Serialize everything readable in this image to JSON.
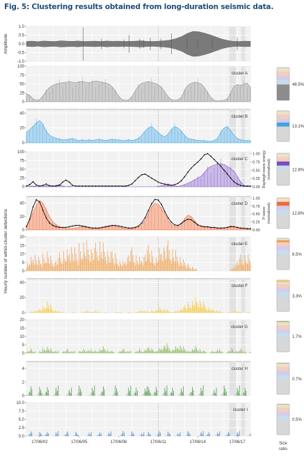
{
  "figure": {
    "title": "Fig. 5: Clustering results obtained from long-duration seismic data."
  },
  "chart_data": {
    "type": "area",
    "title": "Fig. 5: Clustering results obtained from long-duration seismic data.",
    "xlabel": "",
    "x_ticks": [
      "17/06/02",
      "17/06/05",
      "17/06/08",
      "17/06/11",
      "17/06/14",
      "17/06/17"
    ],
    "y_axis_shared_label": "Hourly number of within-cluster detections",
    "amplitude": {
      "ylabel": "Amplitude",
      "ylim": [
        -1.0,
        1.0
      ],
      "yticks": [
        "1.0",
        "0.5",
        "0.0",
        "-0.5",
        "-1.0"
      ],
      "envelope": [
        0.14,
        0.16,
        0.13,
        0.17,
        0.15,
        0.14,
        0.18,
        0.16,
        0.15,
        0.17,
        0.14,
        0.15,
        0.16,
        0.14,
        0.17,
        0.15,
        0.16,
        0.14,
        0.15,
        0.16,
        0.18,
        0.15,
        0.14,
        0.16,
        0.18,
        0.22,
        0.3,
        0.42,
        0.6,
        0.72,
        0.7,
        0.62,
        0.52,
        0.4,
        0.28,
        0.2,
        0.15,
        0.14,
        0.16,
        0.15
      ],
      "spikes": [
        0.43,
        0.57,
        0.74,
        0.78,
        0.86,
        0.89,
        0.94,
        1.02,
        1.1,
        1.22,
        1.3,
        1.41,
        1.6
      ],
      "spike_heights": [
        0.95,
        0.3,
        0.25,
        0.5,
        0.28,
        0.22,
        0.35,
        0.3,
        0.6,
        0.3,
        0.25,
        0.25,
        0.35
      ]
    },
    "clusters": [
      {
        "name": "cluster A",
        "ratio_label": "48.5%",
        "color": "#8c8c8c",
        "fill": "#c8c8c8",
        "ylim": [
          0,
          100
        ],
        "yticks": [
          "100",
          "75",
          "50",
          "25",
          "0"
        ],
        "sample_period_days": 0.35,
        "values": [
          22,
          18,
          8,
          4,
          6,
          16,
          30,
          40,
          46,
          50,
          52,
          54,
          55,
          56,
          55,
          54,
          56,
          57,
          55,
          54,
          56,
          58,
          57,
          55,
          53,
          50,
          42,
          30,
          16,
          6,
          4,
          5,
          14,
          30,
          44,
          52,
          55,
          56,
          55,
          52,
          48,
          40,
          28,
          14,
          6,
          4,
          5,
          12,
          32,
          46,
          52,
          55,
          54,
          50,
          40,
          26,
          12,
          4,
          2,
          3,
          4,
          8,
          25,
          42,
          48,
          46,
          50,
          52,
          40
        ]
      },
      {
        "name": "cluster B",
        "ratio_label": "13.1%",
        "color": "#3fa3de",
        "fill": "#a8d4f0",
        "ylim": [
          0,
          45
        ],
        "yticks": [
          "40",
          "20",
          "0"
        ],
        "sample_period_days": 0.35,
        "values": [
          14,
          18,
          22,
          27,
          30,
          25,
          16,
          10,
          8,
          6,
          5,
          4,
          4,
          5,
          6,
          4,
          3,
          4,
          3,
          4,
          3,
          4,
          5,
          4,
          3,
          4,
          5,
          4,
          4,
          3,
          3,
          4,
          3,
          4,
          6,
          10,
          16,
          20,
          22,
          18,
          14,
          10,
          8,
          12,
          18,
          22,
          20,
          16,
          10,
          6,
          5,
          4,
          3,
          3,
          3,
          2,
          2,
          3,
          6,
          14,
          20,
          22,
          16,
          10,
          6,
          4,
          3,
          3,
          3
        ]
      },
      {
        "name": "cluster C",
        "ratio_label": "12.8%",
        "color": "#7b4cc0",
        "fill": "#c7b4e6",
        "ylim": [
          0,
          100
        ],
        "yticks": [
          "100",
          "75",
          "50",
          "25",
          "0"
        ],
        "sample_period_days": 0.35,
        "values": [
          0,
          1,
          2,
          1,
          0,
          1,
          3,
          2,
          1,
          4,
          6,
          2,
          0,
          1,
          0,
          0,
          0,
          0,
          0,
          0,
          0,
          0,
          0,
          0,
          0,
          0,
          0,
          0,
          0,
          0,
          2,
          0,
          0,
          0,
          0,
          0,
          0,
          0,
          0,
          0,
          1,
          3,
          5,
          8,
          4,
          2,
          1,
          3,
          6,
          10,
          14,
          20,
          25,
          30,
          40,
          52,
          58,
          62,
          65,
          66,
          64,
          58,
          52,
          44,
          30,
          14,
          4,
          1,
          0
        ],
        "second_axis_label": "Rayleigh-wave energy (normalized)",
        "second_axis_ticks": [
          "1.00",
          "0.75",
          "0.50",
          "0.25",
          "0.00"
        ],
        "energy": [
          0.02,
          0.06,
          0.15,
          0.05,
          0.02,
          0.04,
          0.08,
          0.03,
          0.02,
          0.02,
          0.04,
          0.14,
          0.2,
          0.14,
          0.04,
          0.02,
          0.02,
          0.02,
          0.02,
          0.02,
          0.02,
          0.02,
          0.02,
          0.02,
          0.02,
          0.02,
          0.02,
          0.02,
          0.02,
          0.02,
          0.02,
          0.04,
          0.08,
          0.18,
          0.28,
          0.36,
          0.38,
          0.32,
          0.26,
          0.2,
          0.14,
          0.1,
          0.08,
          0.05,
          0.04,
          0.06,
          0.1,
          0.18,
          0.3,
          0.44,
          0.56,
          0.66,
          0.74,
          0.84,
          0.96,
          1.0,
          0.92,
          0.82,
          0.72,
          0.62,
          0.5,
          0.38,
          0.26,
          0.15,
          0.08,
          0.04,
          0.02,
          0.02,
          0.02
        ]
      },
      {
        "name": "cluster D",
        "ratio_label": "12.8%",
        "color": "#ee6a3e",
        "fill": "#f6b9a1",
        "ylim": [
          0,
          50
        ],
        "yticks": [
          "40",
          "20",
          "0"
        ],
        "sample_period_days": 0.35,
        "values": [
          6,
          14,
          26,
          36,
          44,
          40,
          30,
          20,
          12,
          8,
          5,
          3,
          2,
          2,
          2,
          3,
          4,
          5,
          4,
          3,
          2,
          2,
          2,
          3,
          4,
          5,
          6,
          5,
          4,
          3,
          2,
          2,
          2,
          3,
          4,
          8,
          14,
          24,
          34,
          40,
          38,
          32,
          24,
          14,
          8,
          5,
          6,
          10,
          16,
          22,
          20,
          14,
          8,
          5,
          4,
          4,
          3,
          3,
          2,
          2,
          3,
          4,
          6,
          5,
          3,
          2,
          2,
          1,
          1
        ],
        "second_axis_label": "P-wave (normalized)",
        "second_axis_ticks": [
          "1.00",
          "0.75",
          "0.50",
          "0.25",
          "0.00"
        ],
        "energy": [
          0.1,
          0.34,
          0.72,
          0.95,
          0.88,
          0.62,
          0.38,
          0.22,
          0.14,
          0.1,
          0.08,
          0.08,
          0.08,
          0.1,
          0.12,
          0.14,
          0.14,
          0.12,
          0.1,
          0.08,
          0.06,
          0.06,
          0.06,
          0.08,
          0.1,
          0.12,
          0.14,
          0.14,
          0.12,
          0.1,
          0.08,
          0.06,
          0.06,
          0.08,
          0.12,
          0.22,
          0.38,
          0.6,
          0.82,
          0.96,
          0.94,
          0.8,
          0.58,
          0.38,
          0.24,
          0.16,
          0.14,
          0.2,
          0.28,
          0.34,
          0.32,
          0.24,
          0.16,
          0.12,
          0.1,
          0.1,
          0.08,
          0.08,
          0.06,
          0.06,
          0.06,
          0.08,
          0.1,
          0.1,
          0.08,
          0.06,
          0.05,
          0.04,
          0.04
        ]
      },
      {
        "name": "cluster E",
        "ratio_label": "6.5%",
        "color": "#ec9a4a",
        "fill": "#f8d3a8",
        "ylim": [
          0,
          20
        ],
        "yticks": [
          "20",
          "15",
          "10",
          "5",
          "0"
        ],
        "sample_period_days": 0.35,
        "values": [
          4,
          6,
          8,
          6,
          5,
          7,
          9,
          6,
          4,
          5,
          8,
          10,
          9,
          12,
          10,
          8,
          11,
          13,
          12,
          10,
          9,
          12,
          15,
          12,
          10,
          8,
          9,
          7,
          5,
          4,
          6,
          8,
          10,
          8,
          6,
          7,
          9,
          12,
          8,
          6,
          9,
          11,
          10,
          13,
          11,
          9,
          7,
          5,
          4,
          3,
          2,
          1,
          0,
          0,
          0,
          0,
          0,
          0,
          0,
          0,
          0,
          0,
          1,
          3,
          5,
          7,
          8,
          7,
          6
        ]
      },
      {
        "name": "cluster F",
        "ratio_label": "3.3%",
        "color": "#f2c62c",
        "fill": "#f8e49a",
        "ylim": [
          0,
          45
        ],
        "yticks": [
          "40",
          "20",
          "0"
        ],
        "sample_period_days": 0.35,
        "values": [
          0,
          1,
          2,
          3,
          4,
          6,
          12,
          8,
          3,
          2,
          1,
          1,
          0,
          0,
          1,
          0,
          0,
          1,
          2,
          1,
          1,
          2,
          1,
          0,
          1,
          0,
          0,
          1,
          1,
          0,
          0,
          1,
          0,
          1,
          2,
          3,
          2,
          1,
          2,
          3,
          5,
          4,
          3,
          2,
          1,
          2,
          3,
          5,
          8,
          10,
          12,
          14,
          13,
          10,
          8,
          6,
          4,
          3,
          2,
          1,
          0,
          1,
          1,
          2,
          1,
          1,
          0,
          1,
          0
        ]
      },
      {
        "name": "cluster G",
        "ratio_label": "1.7%",
        "color": "#7bb04e",
        "fill": "#c4dfa8",
        "ylim": [
          0,
          20
        ],
        "yticks": [
          "20",
          "15",
          "10",
          "5",
          "0"
        ],
        "sample_period_days": 0.35,
        "values": [
          1,
          2,
          1,
          0,
          1,
          2,
          3,
          2,
          1,
          1,
          0,
          1,
          2,
          1,
          1,
          0,
          1,
          2,
          1,
          2,
          1,
          1,
          2,
          3,
          2,
          1,
          1,
          0,
          1,
          2,
          1,
          1,
          0,
          1,
          2,
          1,
          2,
          3,
          2,
          1,
          2,
          3,
          4,
          3,
          2,
          3,
          4,
          3,
          2,
          1,
          2,
          3,
          2,
          1,
          1,
          0,
          1,
          1,
          2,
          1,
          0,
          1,
          2,
          1,
          1,
          2,
          1,
          0,
          1
        ]
      },
      {
        "name": "cluster H",
        "ratio_label": "0.7%",
        "color": "#3e8a3e",
        "fill": "#a4cf9c",
        "ylim": [
          0,
          5
        ],
        "yticks": [
          "4",
          "2",
          "0"
        ],
        "sample_period_days": 0.35,
        "values": [
          0,
          1,
          0,
          0,
          1,
          0,
          1,
          0,
          0,
          1,
          0,
          0,
          0,
          1,
          0,
          0,
          1,
          0,
          0,
          0,
          1,
          0,
          0,
          1,
          0,
          0,
          0,
          1,
          0,
          0,
          0,
          1,
          0,
          1,
          0,
          0,
          1,
          1,
          0,
          1,
          0,
          0,
          1,
          0,
          1,
          0,
          0,
          1,
          0,
          0,
          1,
          0,
          0,
          1,
          0,
          0,
          0,
          1,
          0,
          0,
          1,
          0,
          0,
          0,
          1,
          0,
          1,
          0,
          0
        ]
      },
      {
        "name": "cluster I",
        "ratio_label": "0.5%",
        "color": "#3e7fbc",
        "fill": "#a9c8e6",
        "ylim": [
          0,
          10
        ],
        "yticks": [
          "10.0",
          "7.5",
          "5.0",
          "2.5",
          "0.0"
        ],
        "sample_period_days": 0.35,
        "values": [
          0,
          1,
          0,
          0,
          1,
          0,
          1,
          0,
          0,
          1,
          0,
          0,
          1,
          0,
          0,
          1,
          0,
          0,
          0,
          1,
          0,
          0,
          1,
          0,
          0,
          1,
          0,
          0,
          0,
          1,
          0,
          0,
          1,
          0,
          0,
          1,
          0,
          1,
          0,
          0,
          1,
          0,
          0,
          1,
          0,
          0,
          1,
          0,
          0,
          1,
          0,
          0,
          0,
          1,
          0,
          1,
          0,
          0,
          1,
          0,
          0,
          1,
          0,
          0,
          1,
          0,
          0,
          0,
          1
        ]
      }
    ],
    "ratio_panel": {
      "label_line1": "Size",
      "label_line2": "ratio"
    },
    "grid": true
  }
}
